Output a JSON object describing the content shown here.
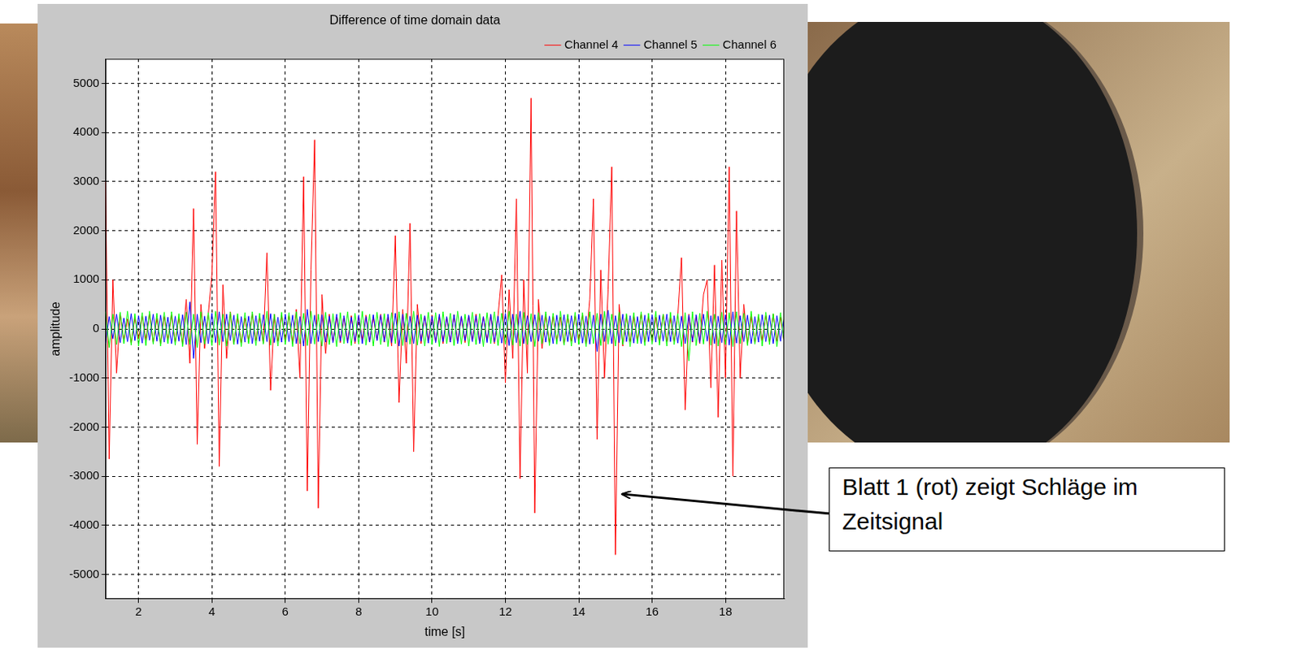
{
  "chart_data": {
    "type": "line",
    "title": "Difference of time domain data",
    "x_label": "time [s]",
    "y_label": "amplitude",
    "xlim": [
      1.1,
      19.6
    ],
    "xticks": [
      2,
      4,
      6,
      8,
      10,
      12,
      14,
      16,
      18
    ],
    "ylim": [
      -5500,
      5500
    ],
    "yticks": [
      -5000,
      -4000,
      -3000,
      -2000,
      -1000,
      0,
      1000,
      2000,
      3000,
      4000,
      5000
    ],
    "grid": true,
    "legend": "top right",
    "annotations": [
      {
        "text": "Blatt 1 (rot) zeigt Schläge im Zeitsignal",
        "x": 15.1,
        "y": -3300
      }
    ],
    "x": [
      1.1,
      1.2,
      1.3,
      1.4,
      1.5,
      1.6,
      1.7,
      1.8,
      1.9,
      2.0,
      2.1,
      2.2,
      2.3,
      2.4,
      2.5,
      2.6,
      2.7,
      2.8,
      2.9,
      3.0,
      3.1,
      3.2,
      3.3,
      3.4,
      3.5,
      3.6,
      3.7,
      3.8,
      3.9,
      4.0,
      4.1,
      4.2,
      4.3,
      4.4,
      4.5,
      4.6,
      4.7,
      4.8,
      4.9,
      5.0,
      5.1,
      5.2,
      5.3,
      5.4,
      5.5,
      5.6,
      5.7,
      5.8,
      5.9,
      6.0,
      6.1,
      6.2,
      6.3,
      6.4,
      6.5,
      6.6,
      6.7,
      6.8,
      6.9,
      7.0,
      7.1,
      7.2,
      7.3,
      7.4,
      7.5,
      7.6,
      7.7,
      7.8,
      7.9,
      8.0,
      8.1,
      8.2,
      8.3,
      8.4,
      8.5,
      8.6,
      8.7,
      8.8,
      8.9,
      9.0,
      9.1,
      9.2,
      9.3,
      9.4,
      9.5,
      9.6,
      9.7,
      9.8,
      9.9,
      10.0,
      10.1,
      10.2,
      10.3,
      10.4,
      10.5,
      10.6,
      10.7,
      10.8,
      10.9,
      11.0,
      11.1,
      11.2,
      11.3,
      11.4,
      11.5,
      11.6,
      11.7,
      11.8,
      11.9,
      12.0,
      12.1,
      12.2,
      12.3,
      12.4,
      12.5,
      12.6,
      12.7,
      12.8,
      12.9,
      13.0,
      13.1,
      13.2,
      13.3,
      13.4,
      13.5,
      13.6,
      13.7,
      13.8,
      13.9,
      14.0,
      14.1,
      14.2,
      14.3,
      14.4,
      14.5,
      14.6,
      14.7,
      14.8,
      14.9,
      15.0,
      15.1,
      15.2,
      15.3,
      15.4,
      15.5,
      15.6,
      15.7,
      15.8,
      15.9,
      16.0,
      16.1,
      16.2,
      16.3,
      16.4,
      16.5,
      16.6,
      16.7,
      16.8,
      16.9,
      17.0,
      17.1,
      17.2,
      17.3,
      17.4,
      17.5,
      17.6,
      17.7,
      17.8,
      17.9,
      18.0,
      18.1,
      18.2,
      18.3,
      18.4,
      18.5,
      18.6,
      18.7,
      18.8,
      18.9,
      19.0,
      19.1,
      19.2,
      19.3,
      19.4,
      19.5,
      19.6
    ],
    "series": [
      {
        "name": "Channel 4",
        "color": "#ff0000",
        "values": [
          3000,
          -2650,
          1000,
          -900,
          300,
          -250,
          200,
          -280,
          230,
          -200,
          260,
          -230,
          300,
          -270,
          220,
          -300,
          250,
          -240,
          280,
          -260,
          240,
          -310,
          600,
          -700,
          2450,
          -2350,
          500,
          -400,
          300,
          1100,
          3200,
          -2800,
          900,
          -600,
          350,
          -300,
          250,
          -280,
          220,
          -260,
          300,
          -240,
          260,
          -290,
          1550,
          -1250,
          300,
          -250,
          280,
          -230,
          270,
          -300,
          400,
          -1000,
          3100,
          -3300,
          1200,
          3850,
          -3650,
          700,
          -500,
          300,
          -260,
          240,
          -280,
          230,
          -250,
          270,
          -300,
          260,
          -240,
          280,
          -260,
          250,
          -230,
          300,
          -270,
          240,
          -350,
          1900,
          -1500,
          400,
          -700,
          2150,
          -2500,
          500,
          -300,
          260,
          -240,
          280,
          -260,
          250,
          -300,
          230,
          -270,
          290,
          -250,
          240,
          -280,
          260,
          -230,
          300,
          -260,
          250,
          -240,
          280,
          -300,
          270,
          1100,
          -1100,
          800,
          -600,
          2650,
          -3050,
          1000,
          -900,
          4700,
          -3750,
          600,
          -400,
          300,
          -280,
          250,
          -260,
          240,
          -300,
          270,
          -250,
          260,
          -240,
          280,
          -300,
          600,
          2650,
          -2250,
          1200,
          -1000,
          800,
          3300,
          -4600,
          500,
          -350,
          280,
          -260,
          250,
          -240,
          300,
          -270,
          260,
          -250,
          240,
          -280,
          300,
          -260,
          230,
          -250,
          270,
          1450,
          -1650,
          300,
          -270,
          260,
          -300,
          700,
          1000,
          -1200,
          1300,
          -1800,
          1400,
          -1000,
          3300,
          -3000,
          2400,
          -1000,
          500,
          -300,
          260,
          -280,
          250,
          -240,
          270,
          -260,
          300,
          -250,
          240,
          -280
        ]
      },
      {
        "name": "Channel 5",
        "color": "#0000ff",
        "values": [
          -300,
          250,
          -200,
          300,
          -280,
          220,
          -260,
          310,
          -240,
          270,
          -290,
          260,
          -230,
          300,
          -250,
          280,
          -270,
          240,
          -300,
          260,
          -250,
          290,
          -320,
          550,
          -600,
          300,
          -280,
          260,
          -300,
          320,
          -280,
          350,
          -260,
          300,
          -240,
          280,
          -310,
          250,
          -270,
          260,
          -300,
          270,
          -250,
          290,
          -260,
          310,
          -280,
          240,
          -270,
          300,
          -260,
          280,
          -300,
          250,
          -350,
          400,
          -300,
          280,
          -260,
          290,
          -270,
          260,
          -280,
          300,
          -250,
          270,
          -290,
          240,
          -260,
          280,
          -300,
          250,
          -270,
          290,
          -240,
          280,
          -260,
          300,
          -280,
          320,
          -350,
          300,
          -270,
          260,
          -300,
          280,
          -250,
          270,
          -290,
          260,
          -280,
          300,
          -260,
          250,
          -270,
          290,
          -300,
          260,
          -240,
          280,
          -260,
          270,
          -300,
          250,
          -280,
          300,
          -270,
          260,
          -290,
          320,
          -340,
          300,
          -280,
          360,
          -300,
          270,
          -260,
          290,
          -250,
          280,
          -270,
          260,
          -300,
          280,
          -250,
          290,
          -260,
          270,
          -280,
          300,
          -290,
          260,
          -310,
          280,
          -460,
          300,
          -260,
          380,
          -300,
          270,
          -280,
          300,
          -260,
          270,
          -290,
          250,
          -300,
          280,
          -260,
          290,
          -270,
          280,
          -250,
          300,
          -260,
          270,
          -290,
          260,
          -300,
          280,
          -260,
          290,
          -280,
          300,
          -250,
          270,
          -300,
          260,
          -280,
          290,
          -330,
          350,
          -290,
          270,
          -260,
          280,
          -300,
          250,
          -270,
          290,
          -260,
          280,
          -300,
          270,
          -250,
          260
        ]
      },
      {
        "name": "Channel 6",
        "color": "#00ff00",
        "values": [
          350,
          -380,
          300,
          -320,
          340,
          -300,
          360,
          -330,
          310,
          -350,
          330,
          -340,
          360,
          -310,
          320,
          -350,
          340,
          -300,
          350,
          -330,
          310,
          -360,
          340,
          -320,
          300,
          -380,
          350,
          -310,
          330,
          -340,
          360,
          -330,
          300,
          -350,
          340,
          -320,
          310,
          -360,
          330,
          -300,
          350,
          -340,
          320,
          -310,
          360,
          -330,
          300,
          -350,
          340,
          -320,
          330,
          -360,
          350,
          -300,
          320,
          -340,
          360,
          -310,
          300,
          -350,
          340,
          -320,
          310,
          -360,
          330,
          -300,
          350,
          -340,
          320,
          -310,
          360,
          -330,
          300,
          -350,
          340,
          -320,
          310,
          -360,
          330,
          -300,
          350,
          -340,
          320,
          -310,
          360,
          -330,
          300,
          -350,
          340,
          -320,
          330,
          -360,
          350,
          -300,
          320,
          -340,
          360,
          -310,
          300,
          -350,
          340,
          -320,
          310,
          -360,
          330,
          -300,
          350,
          -340,
          320,
          -310,
          360,
          -330,
          300,
          -350,
          340,
          -320,
          310,
          -360,
          330,
          -300,
          350,
          -340,
          320,
          -310,
          360,
          -330,
          300,
          -350,
          340,
          -320,
          330,
          -360,
          350,
          -300,
          320,
          -340,
          360,
          -310,
          300,
          -350,
          340,
          -320,
          310,
          -360,
          330,
          -300,
          350,
          -340,
          320,
          -310,
          360,
          -330,
          300,
          -350,
          340,
          -320,
          310,
          -360,
          330,
          -650,
          350,
          -340,
          320,
          -310,
          360,
          -330,
          300,
          -350,
          340,
          -320,
          330,
          -360,
          350,
          -300,
          320,
          -340,
          360,
          -310,
          300,
          -350,
          340,
          -320,
          310,
          -360,
          330,
          -300
        ]
      }
    ]
  }
}
